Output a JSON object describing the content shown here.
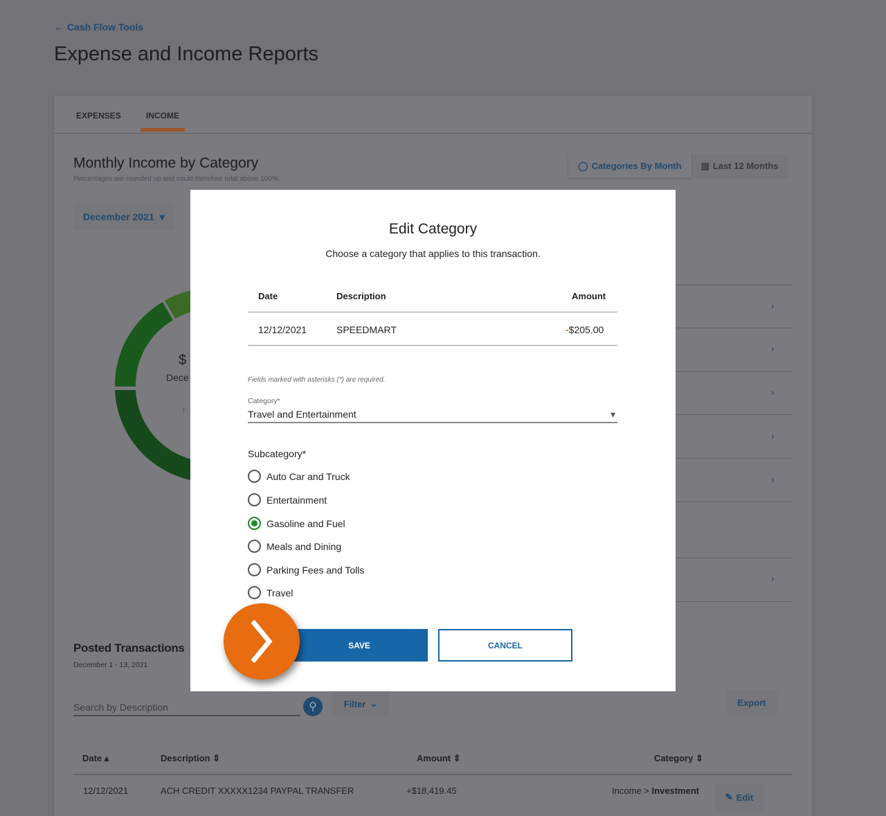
{
  "header": {
    "back_label": "Cash Flow Tools",
    "title": "Expense and Income Reports"
  },
  "tabs": [
    {
      "label": "EXPENSES"
    },
    {
      "label": "INCOME",
      "active": true
    }
  ],
  "report": {
    "title": "Monthly Income by Category",
    "note": "Percentages are rounded up and could therefore total above 100%.",
    "view_toggle": [
      "Categories By Month",
      "Last 12 Months"
    ],
    "month_select": "December 2021",
    "center_amount_partial": "$",
    "center_label_partial": "Dece"
  },
  "posted": {
    "title": "Posted Transactions",
    "date_range": "December 1 - 13, 2021",
    "search_placeholder": "Search by Description",
    "filter_label": "Filter",
    "export_label": "Export",
    "columns": [
      "Date",
      "Description",
      "Amount",
      "Category"
    ],
    "rows": [
      {
        "date": "12/12/2021",
        "description": "ACH CREDIT XXXXX1234 PAYPAL TRANSFER",
        "amount": "+$18,419.45",
        "category_parent": "Income >",
        "category": "Investment",
        "edit": "Edit"
      }
    ]
  },
  "modal": {
    "title": "Edit Category",
    "subtitle": "Choose a category that applies to this transaction.",
    "columns": {
      "date": "Date",
      "description": "Description",
      "amount": "Amount"
    },
    "transaction": {
      "date": "12/12/2021",
      "description": "SPEEDMART",
      "amount_sign": "-",
      "amount": "$205.00"
    },
    "required_note": "Fields marked with asterisks (*) are required.",
    "category_label": "Category*",
    "category_value": "Travel and Entertainment",
    "subcategory_label": "Subcategory*",
    "subcategories": [
      "Auto Car and Truck",
      "Entertainment",
      "Gasoline and Fuel",
      "Meals and Dining",
      "Parking Fees and Tolls",
      "Travel"
    ],
    "selected_subcategory": "Gasoline and Fuel",
    "save_label": "SAVE",
    "cancel_label": "CANCEL"
  },
  "colors": {
    "accent": "#1666a8",
    "tab_indicator": "#e36c1b",
    "fab": "#e86c10",
    "selected_radio": "#1d8a2a"
  }
}
